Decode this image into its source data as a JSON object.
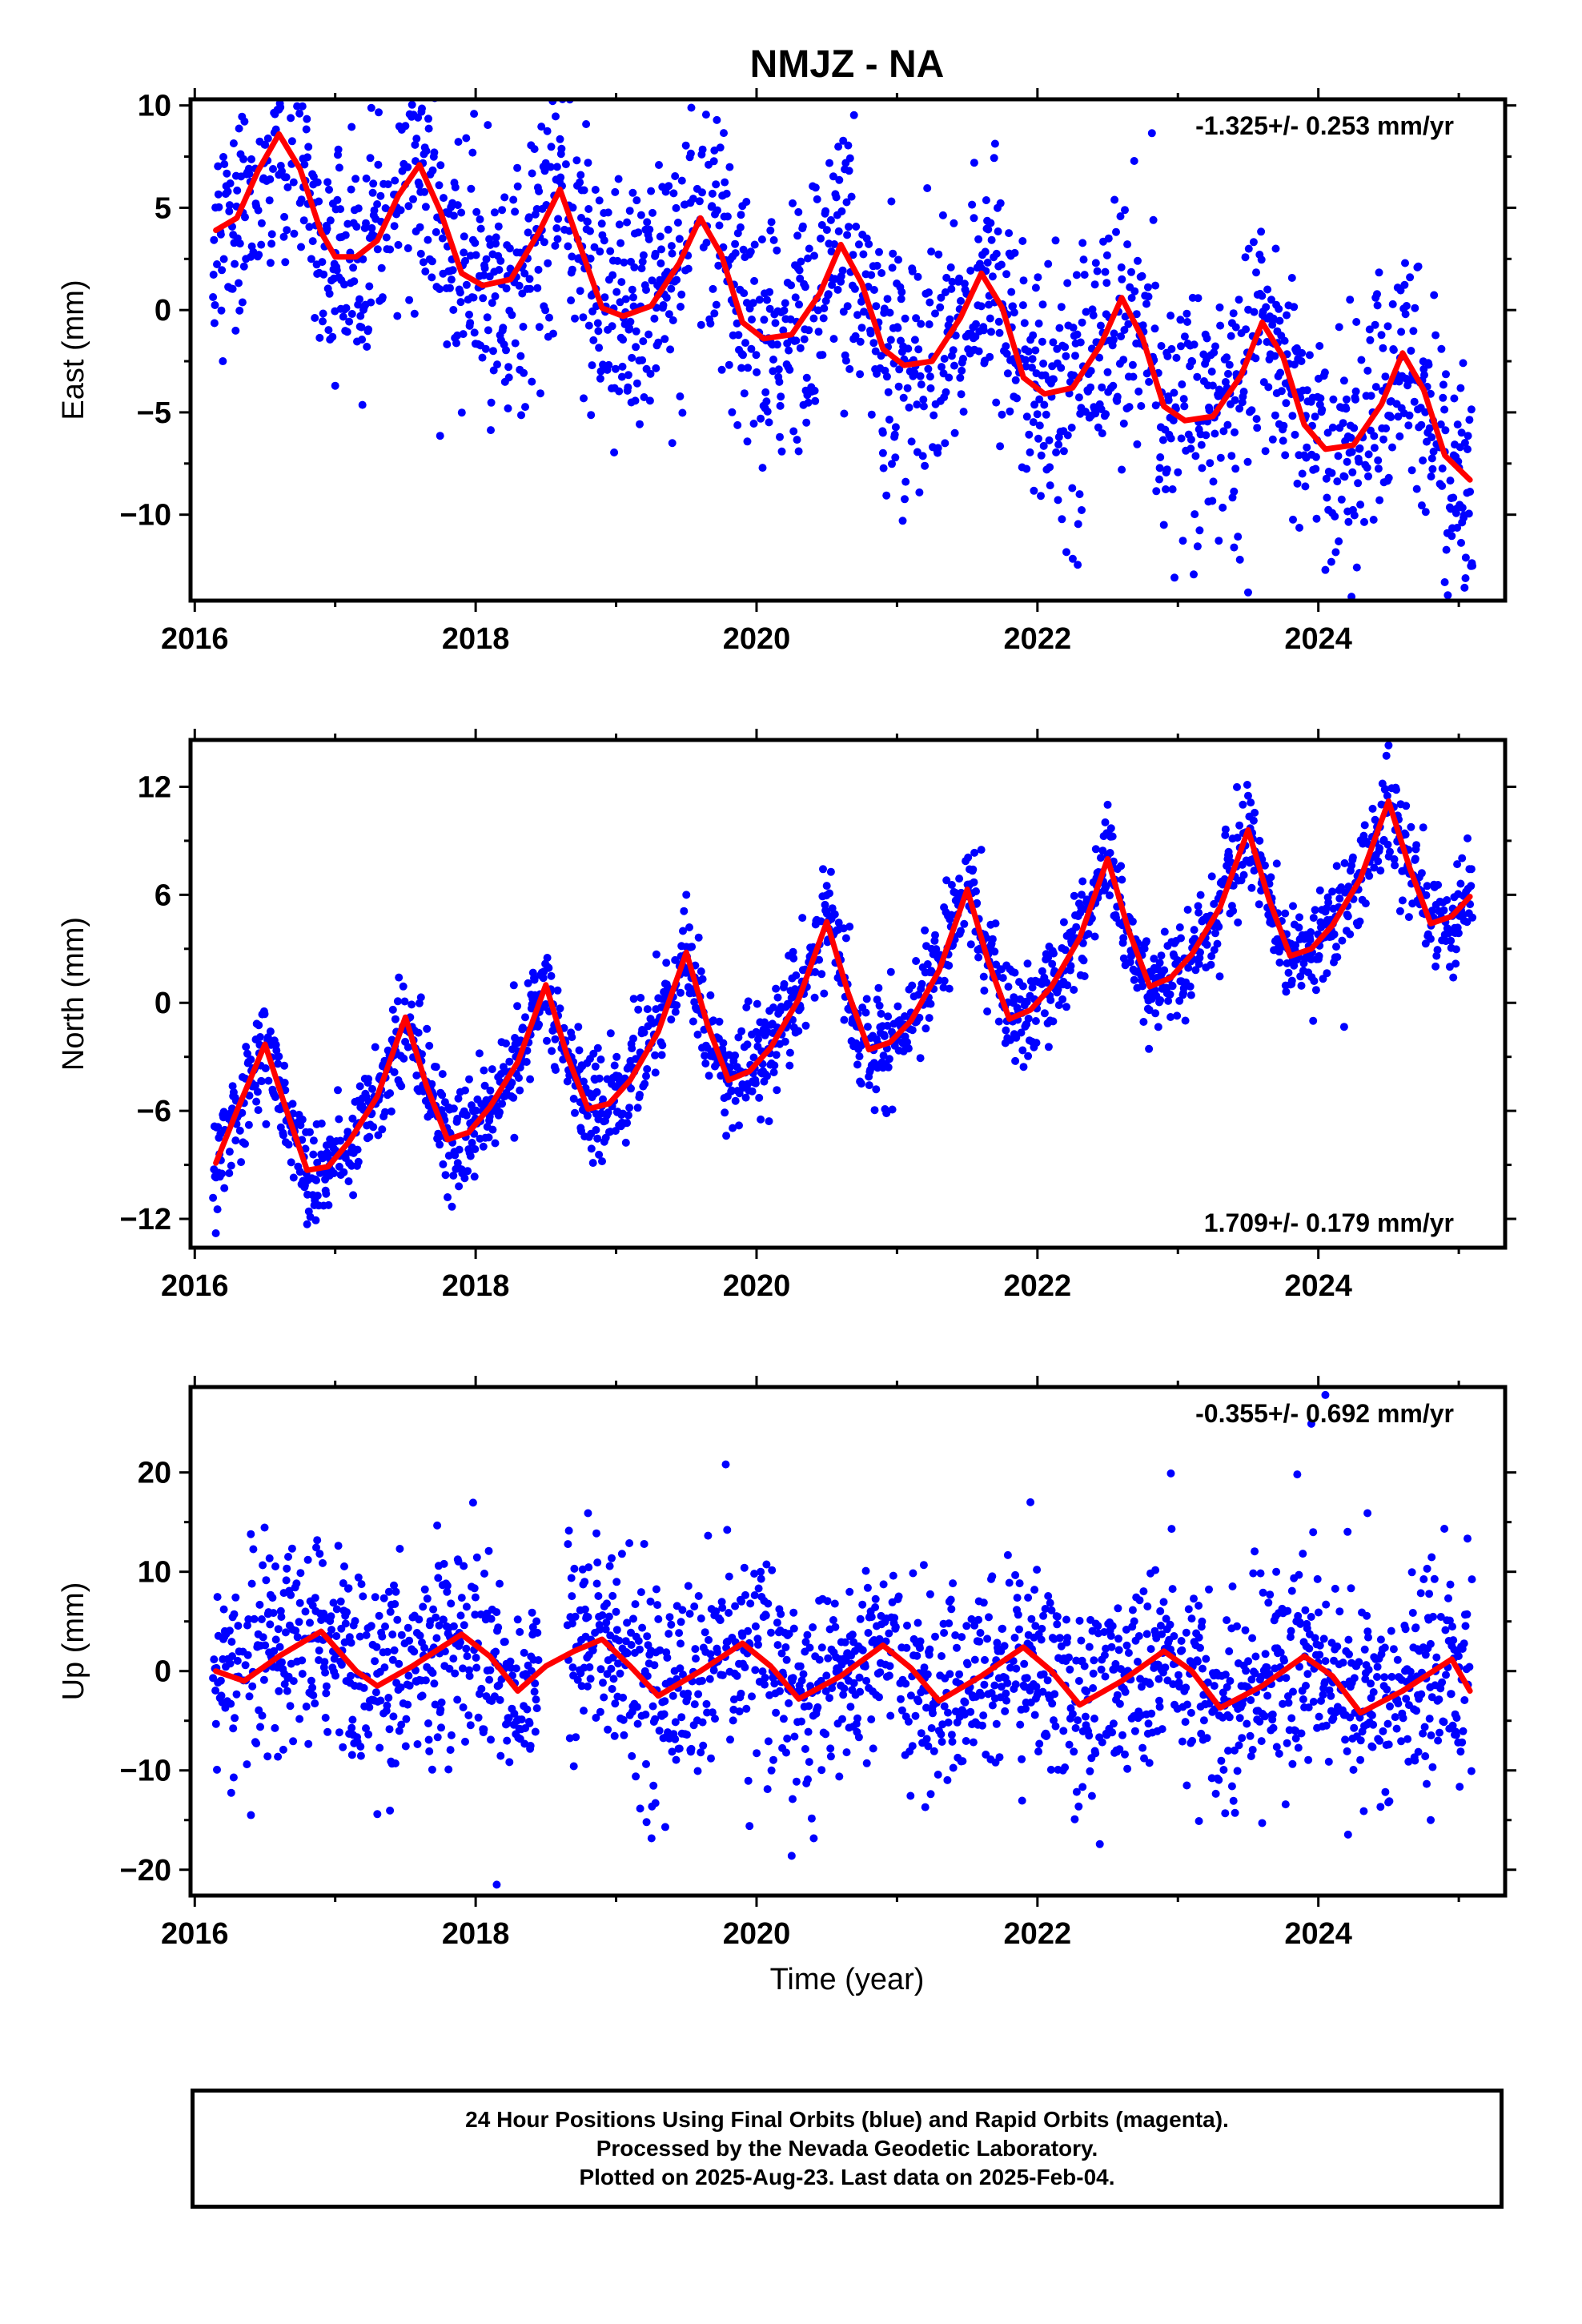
{
  "figure": {
    "title": "NMJZ - NA",
    "xlabel": "Time (year)",
    "caption_lines": [
      "24 Hour Positions Using Final Orbits (blue) and Rapid Orbits (magenta).",
      "Processed by the Nevada Geodetic Laboratory.",
      "Plotted on 2025-Aug-23. Last data on 2025-Feb-04."
    ]
  },
  "colors": {
    "points": "#0000ff",
    "model": "#ff0000",
    "axis": "#000000"
  },
  "chart_data": [
    {
      "type": "scatter",
      "component": "east",
      "ylabel": "East (mm)",
      "rate_label": "-1.325+/- 0.253 mm/yr",
      "rate_position": "top-right",
      "xlim": [
        2015.97,
        2025.33
      ],
      "ylim": [
        -14.2,
        10.3
      ],
      "xticks": [
        2016,
        2018,
        2020,
        2022,
        2024
      ],
      "yticks": [
        -10,
        -5,
        0,
        5,
        10
      ],
      "ytick_labels": [
        "−10",
        "−5",
        "0",
        "5",
        "10"
      ],
      "grid": false,
      "model": {
        "name": "",
        "x": [
          2016.15,
          2016.3,
          2016.45,
          2016.6,
          2016.75,
          2016.9,
          2017.0,
          2017.15,
          2017.3,
          2017.45,
          2017.6,
          2017.75,
          2017.9,
          2018.05,
          2018.25,
          2018.45,
          2018.6,
          2018.75,
          2018.9,
          2019.05,
          2019.25,
          2019.45,
          2019.6,
          2019.75,
          2019.9,
          2020.05,
          2020.25,
          2020.45,
          2020.6,
          2020.75,
          2020.9,
          2021.05,
          2021.25,
          2021.45,
          2021.6,
          2021.75,
          2021.9,
          2022.05,
          2022.25,
          2022.45,
          2022.6,
          2022.75,
          2022.9,
          2023.05,
          2023.25,
          2023.45,
          2023.6,
          2023.75,
          2023.9,
          2024.05,
          2024.25,
          2024.45,
          2024.6,
          2024.75,
          2024.9,
          2025.08
        ],
        "y": [
          3.9,
          4.5,
          6.8,
          8.6,
          6.9,
          3.8,
          2.6,
          2.6,
          3.4,
          5.6,
          7.1,
          4.8,
          1.8,
          1.2,
          1.5,
          3.8,
          5.9,
          3.0,
          0.1,
          -0.3,
          0.2,
          2.3,
          4.5,
          2.7,
          -0.6,
          -1.4,
          -1.2,
          0.8,
          3.2,
          1.3,
          -1.9,
          -2.7,
          -2.5,
          -0.4,
          1.8,
          0.1,
          -3.3,
          -4.1,
          -3.8,
          -1.7,
          0.6,
          -1.4,
          -4.7,
          -5.4,
          -5.2,
          -3.2,
          -0.6,
          -2.3,
          -5.6,
          -6.8,
          -6.6,
          -4.6,
          -2.1,
          -3.9,
          -7.1,
          -8.3
        ]
      },
      "points_scatter_mm": 3.0,
      "outliers": [
        {
          "x": 2016.2,
          "y": -2.5
        },
        {
          "x": 2017.0,
          "y": -3.7
        },
        {
          "x": 2018.4,
          "y": -3.5
        },
        {
          "x": 2019.4,
          "y": -6.5
        },
        {
          "x": 2020.3,
          "y": -6.9
        },
        {
          "x": 2020.9,
          "y": -6.0
        },
        {
          "x": 2022.6,
          "y": -7.8
        },
        {
          "x": 2022.9,
          "y": -10.5
        },
        {
          "x": 2023.4,
          "y": -11.6
        },
        {
          "x": 2023.5,
          "y": -13.8
        },
        {
          "x": 2024.05,
          "y": -12.7
        },
        {
          "x": 2024.9,
          "y": -13.3
        },
        {
          "x": 2025.05,
          "y": -12.1
        },
        {
          "x": 2016.6,
          "y": 9.8
        },
        {
          "x": 2017.5,
          "y": 9.0
        },
        {
          "x": 2018.8,
          "y": 7.2
        },
        {
          "x": 2019.7,
          "y": 7.8
        },
        {
          "x": 2021.55,
          "y": 7.2
        }
      ]
    },
    {
      "type": "scatter",
      "component": "north",
      "ylabel": "North (mm)",
      "rate_label": "1.709+/- 0.179 mm/yr",
      "rate_position": "bottom-right",
      "xlim": [
        2015.97,
        2025.33
      ],
      "ylim": [
        -13.6,
        14.6
      ],
      "xticks": [
        2016,
        2018,
        2020,
        2022,
        2024
      ],
      "yticks": [
        -12,
        -6,
        0,
        6,
        12
      ],
      "ytick_labels": [
        "−12",
        "−6",
        "0",
        "6",
        "12"
      ],
      "grid": false,
      "model": {
        "name": "",
        "x": [
          2016.15,
          2016.3,
          2016.5,
          2016.65,
          2016.8,
          2016.95,
          2017.1,
          2017.3,
          2017.5,
          2017.65,
          2017.8,
          2017.95,
          2018.1,
          2018.3,
          2018.5,
          2018.65,
          2018.8,
          2018.95,
          2019.1,
          2019.3,
          2019.5,
          2019.65,
          2019.8,
          2019.95,
          2020.1,
          2020.3,
          2020.5,
          2020.65,
          2020.8,
          2020.95,
          2021.1,
          2021.3,
          2021.5,
          2021.65,
          2021.8,
          2021.95,
          2022.1,
          2022.3,
          2022.5,
          2022.65,
          2022.8,
          2022.95,
          2023.1,
          2023.3,
          2023.5,
          2023.65,
          2023.8,
          2023.95,
          2024.1,
          2024.3,
          2024.5,
          2024.65,
          2024.8,
          2024.95,
          2025.08
        ],
        "y": [
          -8.9,
          -6.0,
          -2.3,
          -5.9,
          -9.3,
          -9.1,
          -7.7,
          -5.2,
          -0.8,
          -4.6,
          -7.6,
          -7.2,
          -5.8,
          -3.3,
          1.0,
          -2.9,
          -5.9,
          -5.6,
          -4.3,
          -1.6,
          2.8,
          -1.2,
          -4.3,
          -3.8,
          -2.5,
          0.2,
          4.5,
          0.6,
          -2.6,
          -2.2,
          -1.0,
          1.8,
          6.3,
          2.3,
          -0.9,
          -0.4,
          0.9,
          3.6,
          8.0,
          4.0,
          0.9,
          1.4,
          2.7,
          5.3,
          9.6,
          5.7,
          2.6,
          3.0,
          4.3,
          6.9,
          11.2,
          7.5,
          4.4,
          4.8,
          5.9
        ]
      },
      "points_scatter_mm": 1.4,
      "outliers": [
        {
          "x": 2016.15,
          "y": -12.8
        },
        {
          "x": 2016.8,
          "y": -12.3
        },
        {
          "x": 2017.8,
          "y": -10.8
        },
        {
          "x": 2018.9,
          "y": -8.8
        },
        {
          "x": 2019.5,
          "y": 6.0
        },
        {
          "x": 2020.5,
          "y": 6.5
        },
        {
          "x": 2021.6,
          "y": 8.5
        },
        {
          "x": 2022.5,
          "y": 11.0
        },
        {
          "x": 2023.5,
          "y": 11.5
        },
        {
          "x": 2024.5,
          "y": 14.3
        }
      ]
    },
    {
      "type": "scatter",
      "component": "up",
      "ylabel": "Up (mm)",
      "rate_label": "-0.355+/- 0.692 mm/yr",
      "rate_position": "top-right",
      "xlim": [
        2015.97,
        2025.33
      ],
      "ylim": [
        -22.6,
        28.6
      ],
      "xticks": [
        2016,
        2018,
        2020,
        2022,
        2024
      ],
      "yticks": [
        -20,
        -10,
        0,
        10,
        20
      ],
      "ytick_labels": [
        "−20",
        "−10",
        "0",
        "10",
        "20"
      ],
      "grid": false,
      "model": {
        "name": "",
        "x": [
          2016.15,
          2016.35,
          2016.6,
          2016.9,
          2017.15,
          2017.3,
          2017.55,
          2017.9,
          2018.1,
          2018.3,
          2018.5,
          2018.7,
          2018.9,
          2019.1,
          2019.3,
          2019.6,
          2019.9,
          2020.1,
          2020.3,
          2020.6,
          2020.9,
          2021.1,
          2021.3,
          2021.6,
          2021.9,
          2022.1,
          2022.3,
          2022.6,
          2022.9,
          2023.1,
          2023.3,
          2023.6,
          2023.9,
          2024.1,
          2024.3,
          2024.6,
          2024.95,
          2025.08
        ],
        "y": [
          0.0,
          -1.0,
          1.5,
          4.0,
          0.0,
          -1.5,
          0.5,
          3.7,
          1.5,
          -2.0,
          0.5,
          2.0,
          3.2,
          0.5,
          -2.5,
          0.0,
          2.8,
          0.5,
          -2.8,
          -0.5,
          2.6,
          0.3,
          -3.0,
          -0.5,
          2.4,
          0.0,
          -3.4,
          -1.0,
          2.0,
          0.0,
          -3.7,
          -1.5,
          1.5,
          -0.5,
          -4.2,
          -2.0,
          1.2,
          -2.0
        ]
      },
      "points_scatter_mm": 5.0,
      "data_gap": [
        2018.45,
        2018.65
      ],
      "outliers": [
        {
          "x": 2016.4,
          "y": -14.5
        },
        {
          "x": 2017.3,
          "y": -14.4
        },
        {
          "x": 2018.15,
          "y": -21.5
        },
        {
          "x": 2019.35,
          "y": -15.7
        },
        {
          "x": 2019.95,
          "y": -15.6
        },
        {
          "x": 2020.25,
          "y": -18.6
        },
        {
          "x": 2023.15,
          "y": -15.1
        },
        {
          "x": 2023.6,
          "y": -15.3
        },
        {
          "x": 2024.8,
          "y": -15.0
        },
        {
          "x": 2018.8,
          "y": 15.9
        },
        {
          "x": 2019.2,
          "y": 12.8
        },
        {
          "x": 2021.95,
          "y": 17.0
        },
        {
          "x": 2022.95,
          "y": 19.9
        },
        {
          "x": 2023.95,
          "y": 24.9
        },
        {
          "x": 2024.05,
          "y": 27.8
        },
        {
          "x": 2023.85,
          "y": 19.8
        },
        {
          "x": 2024.35,
          "y": 15.9
        }
      ]
    }
  ]
}
